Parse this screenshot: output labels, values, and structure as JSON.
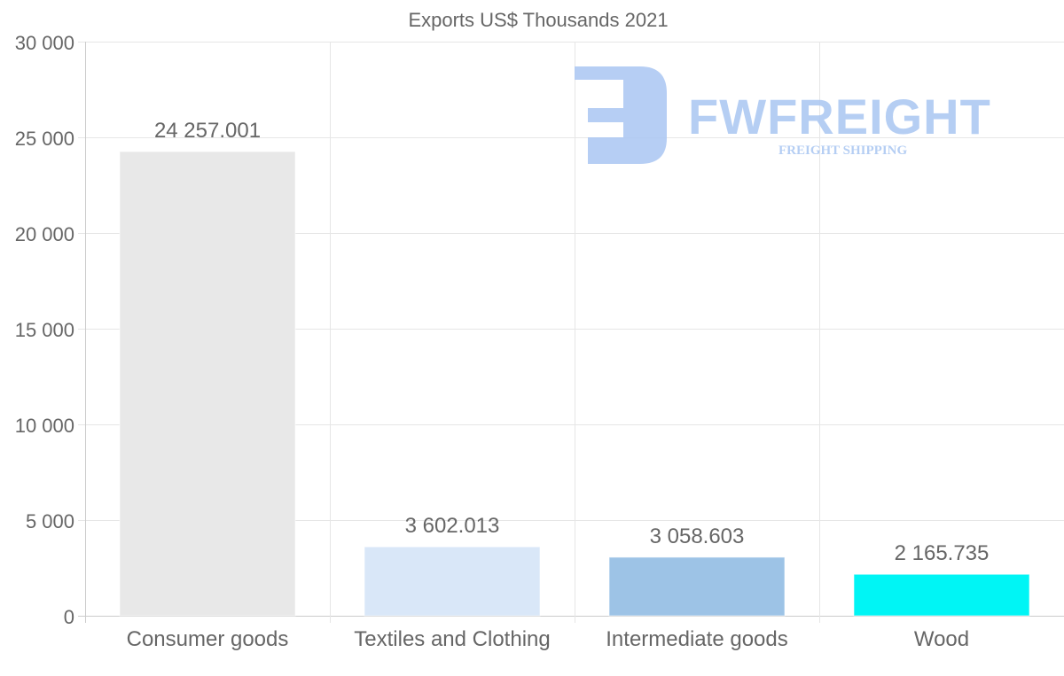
{
  "chart_data": {
    "type": "bar",
    "title": "Exports US$ Thousands 2021",
    "xlabel": "",
    "ylabel": "",
    "categories": [
      "Consumer goods",
      "Textiles and Clothing",
      "Intermediate goods",
      "Wood"
    ],
    "values": [
      24257.001,
      3602.013,
      3058.603,
      2165.735
    ],
    "data_labels": [
      "24 257.001",
      "3 602.013",
      "3 058.603",
      "2 165.735"
    ],
    "colors": [
      "#e8e8e8",
      "#d9e7f8",
      "#9dc3e6",
      "#00f5f5"
    ],
    "ylim": [
      0,
      30000
    ],
    "yticks": [
      0,
      5000,
      10000,
      15000,
      20000,
      25000,
      30000
    ],
    "ytick_labels": [
      "0",
      "5 000",
      "10 000",
      "15 000",
      "20 000",
      "25 000",
      "30 000"
    ],
    "grid": true,
    "legend": "none"
  },
  "watermark": {
    "brand": "FWFREIGHT",
    "tagline": "FREIGHT SHIPPING",
    "color": "#a9c6f2"
  }
}
